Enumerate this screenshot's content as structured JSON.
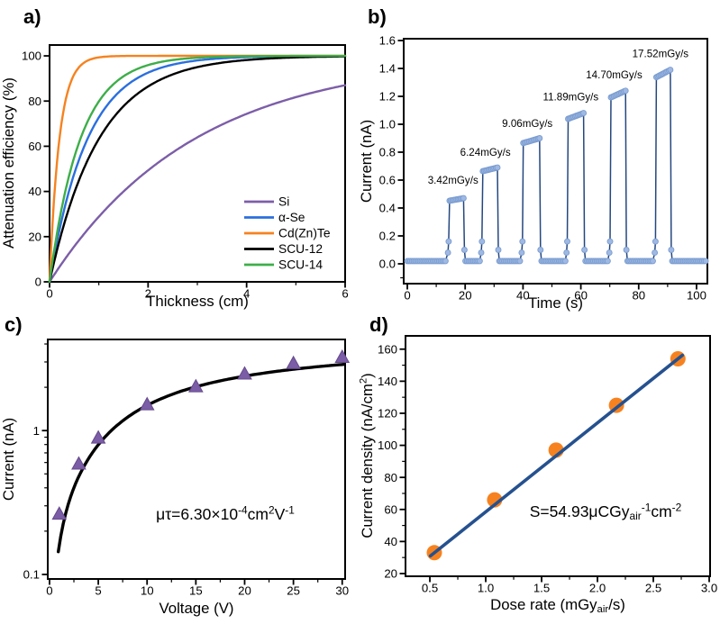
{
  "figure": {
    "type": "four-panel scientific figure",
    "background": "#ffffff",
    "panel_labels": {
      "a": "a)",
      "b": "b)",
      "c": "c)",
      "d": "d)"
    }
  },
  "chart_data": [
    {
      "panel": "a",
      "type": "line",
      "xlabel": "Thickness (cm)",
      "ylabel": "Attenuation efficiency (%)",
      "axis": {
        "xlim": [
          0,
          6
        ],
        "ylim": [
          0,
          104.8
        ],
        "x_ticks": [
          0,
          2,
          4,
          6
        ],
        "x_tick_labels": [
          "0",
          "2",
          "4",
          "6"
        ],
        "x_minor": [
          1,
          3,
          5
        ],
        "y_ticks": [
          0,
          20,
          40,
          60,
          80,
          100
        ],
        "y_tick_labels": [
          "0",
          "20",
          "40",
          "60",
          "80",
          "100"
        ],
        "y_minor": []
      },
      "curve_model": "efficiency(%) = 100*(1-exp(-mu*thickness_cm))",
      "series": [
        {
          "name": "Si",
          "color": "#7C5EA8",
          "mu_per_cm": 0.34
        },
        {
          "name": "α-Se",
          "color": "#2B6FDE",
          "mu_per_cm": 1.3
        },
        {
          "name": "Cd(Zn)Te",
          "color": "#F6821F",
          "mu_per_cm": 5.0
        },
        {
          "name": "SCU-12",
          "color": "#000000",
          "mu_per_cm": 1.0
        },
        {
          "name": "SCU-14",
          "color": "#3DAE49",
          "mu_per_cm": 1.6
        }
      ],
      "legend_position": "right-center"
    },
    {
      "panel": "b",
      "type": "line",
      "xlabel": "Time (s)",
      "ylabel": "Current (nA)",
      "axis": {
        "xlim": [
          -1.25,
          103.75
        ],
        "ylim": [
          -0.142,
          1.613
        ],
        "x_ticks": [
          0,
          20,
          40,
          60,
          80,
          100
        ],
        "x_tick_labels": [
          "0",
          "20",
          "40",
          "60",
          "80",
          "100"
        ],
        "x_minor": [
          10,
          30,
          50,
          70,
          90
        ],
        "y_ticks": [
          0,
          0.2,
          0.4,
          0.6,
          0.8,
          1.0,
          1.2,
          1.4,
          1.6
        ],
        "y_tick_labels": [
          "0.0",
          "0.2",
          "0.4",
          "0.6",
          "0.8",
          "1.0",
          "1.2",
          "1.4",
          "1.6"
        ],
        "y_minor": [
          -0.1
        ]
      },
      "baseline_nA": 0.02,
      "t_end_s": 103.5,
      "line_color": "#24477F",
      "marker_fill": "#9FB9E3",
      "marker_edge": "#7A9CD0",
      "pulses": [
        {
          "dose_rate_label": "3.42mGy/s",
          "t_on": 14.0,
          "t_off": 19.5,
          "current_nA": 0.47,
          "label_x": 15.8,
          "label_y": 0.575
        },
        {
          "dose_rate_label": "6.24mGy/s",
          "t_on": 25.5,
          "t_off": 31.2,
          "current_nA": 0.69,
          "label_x": 27.0,
          "label_y": 0.775
        },
        {
          "dose_rate_label": "9.06mGy/s",
          "t_on": 39.5,
          "t_off": 45.8,
          "current_nA": 0.9,
          "label_x": 41.5,
          "label_y": 0.98
        },
        {
          "dose_rate_label": "11.89mGy/s",
          "t_on": 55.0,
          "t_off": 61.0,
          "current_nA": 1.08,
          "label_x": 56.5,
          "label_y": 1.17
        },
        {
          "dose_rate_label": "14.70mGy/s",
          "t_on": 69.8,
          "t_off": 75.5,
          "current_nA": 1.24,
          "label_x": 71.5,
          "label_y": 1.33
        },
        {
          "dose_rate_label": "17.52mGy/s",
          "t_on": 85.5,
          "t_off": 91.0,
          "current_nA": 1.39,
          "label_x": 87.5,
          "label_y": 1.48
        }
      ]
    },
    {
      "panel": "c",
      "type": "scatter",
      "xlabel": "Voltage (V)",
      "ylabel": "Current (nA)",
      "axis": {
        "xlim": [
          -0.18,
          30.3
        ],
        "ylim": [
          0.093,
          4.3
        ],
        "y_log": true,
        "x_ticks": [
          0,
          5,
          10,
          15,
          20,
          25,
          30
        ],
        "x_tick_labels": [
          "0",
          "5",
          "10",
          "15",
          "20",
          "25",
          "30"
        ],
        "x_minor": [
          2.5,
          7.5,
          12.5,
          17.5,
          22.5,
          27.5
        ],
        "y_ticks": [
          0.1,
          1
        ],
        "y_tick_labels": [
          "0.1",
          "1"
        ],
        "y_minor": [
          0.2,
          0.3,
          0.4,
          0.5,
          0.6,
          0.7,
          0.8,
          0.9,
          2,
          3,
          4
        ]
      },
      "marker_color": "#7B5CA6",
      "marker_edge": "#654A8C",
      "points": [
        {
          "voltage_V": 1,
          "current_nA": 0.26
        },
        {
          "voltage_V": 3,
          "current_nA": 0.58
        },
        {
          "voltage_V": 5,
          "current_nA": 0.88
        },
        {
          "voltage_V": 10,
          "current_nA": 1.5
        },
        {
          "voltage_V": 15,
          "current_nA": 2.0
        },
        {
          "voltage_V": 20,
          "current_nA": 2.45
        },
        {
          "voltage_V": 25,
          "current_nA": 2.9
        },
        {
          "voltage_V": 30,
          "current_nA": 3.2
        }
      ],
      "fit": {
        "color": "#000000",
        "model": "Hecht: I = A*(V/k)*(1-exp(-k/V))",
        "A": 4.4,
        "k": 27.5
      },
      "annotation": {
        "parts": [
          {
            "t": "μτ=6.30×10"
          },
          {
            "t": "-4",
            "s": "sup"
          },
          {
            "t": "cm"
          },
          {
            "t": "2",
            "s": "sup"
          },
          {
            "t": "V"
          },
          {
            "t": "-1",
            "s": "sup"
          }
        ]
      }
    },
    {
      "panel": "d",
      "type": "scatter",
      "xlabel_parts": [
        {
          "t": "Dose rate (mGy"
        },
        {
          "t": "air",
          "s": "sub"
        },
        {
          "t": "/s)"
        }
      ],
      "ylabel_parts": [
        {
          "t": "Current density (nA/cm"
        },
        {
          "t": "2",
          "s": "sup"
        },
        {
          "t": ")"
        }
      ],
      "axis": {
        "xlim": [
          0.282,
          3.008
        ],
        "ylim": [
          18.3,
          168.3
        ],
        "x_ticks": [
          0.5,
          1.0,
          1.5,
          2.0,
          2.5,
          3.0
        ],
        "x_tick_labels": [
          "0.5",
          "1.0",
          "1.5",
          "2.0",
          "2.5",
          "3.0"
        ],
        "x_minor": [
          0.75,
          1.25,
          1.75,
          2.25,
          2.75
        ],
        "y_ticks": [
          20,
          40,
          60,
          80,
          100,
          120,
          140,
          160
        ],
        "y_tick_labels": [
          "20",
          "40",
          "60",
          "80",
          "100",
          "120",
          "140",
          "160"
        ],
        "y_minor": [
          30,
          50,
          70,
          90,
          110,
          130,
          150
        ]
      },
      "marker_color": "#F6821F",
      "points": [
        {
          "dose_rate": 0.54,
          "current_density": 33
        },
        {
          "dose_rate": 1.08,
          "current_density": 66
        },
        {
          "dose_rate": 1.63,
          "current_density": 97
        },
        {
          "dose_rate": 2.17,
          "current_density": 125
        },
        {
          "dose_rate": 2.72,
          "current_density": 154
        }
      ],
      "fit_line": {
        "color": "#25518F",
        "x1": 0.505,
        "y1": 31.0,
        "x2": 2.76,
        "y2": 156.2
      },
      "annotation": {
        "parts": [
          {
            "t": "S=54.93μCGy"
          },
          {
            "t": "air",
            "s": "sub"
          },
          {
            "t": "-1",
            "s": "sup"
          },
          {
            "t": "cm"
          },
          {
            "t": "-2",
            "s": "sup"
          }
        ]
      }
    }
  ]
}
